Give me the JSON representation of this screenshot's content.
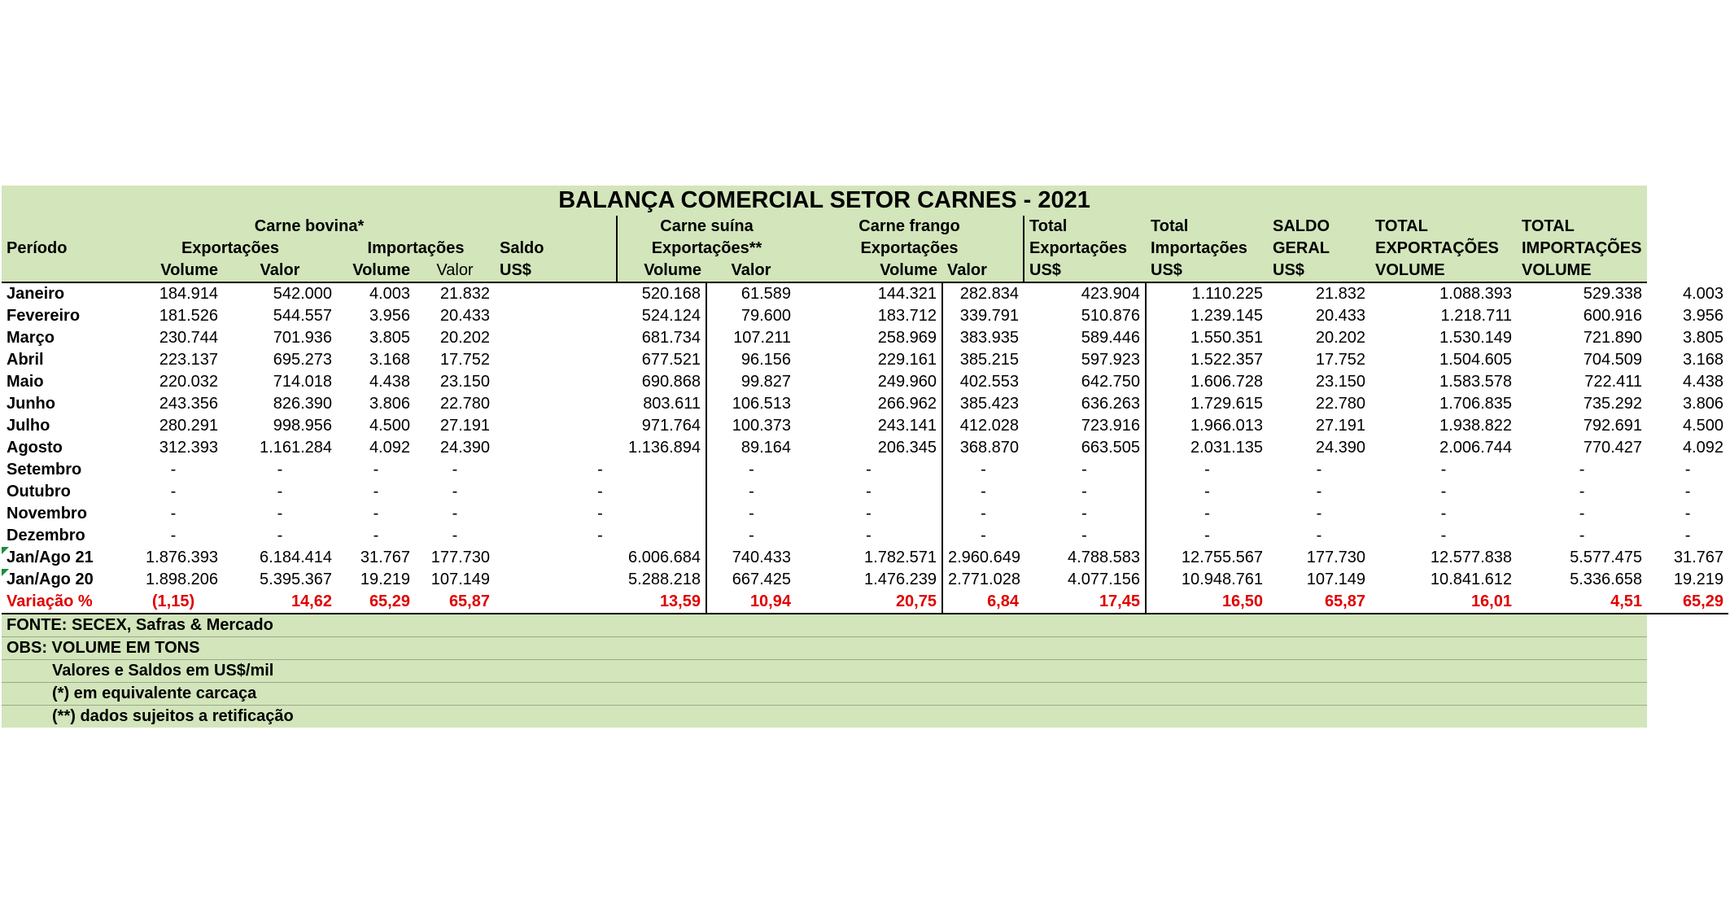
{
  "title": "BALANÇA COMERCIAL SETOR CARNES - 2021",
  "header": {
    "periodo": "Período",
    "carne_bovina": "Carne bovina*",
    "exportacoes": "Exportações",
    "importacoes": "Importações",
    "saldo": "Saldo",
    "us": "US$",
    "carne_suina": "Carne suína",
    "exportacoes_ss": "Exportações**",
    "carne_frango": "Carne frango",
    "volume": "Volume",
    "valor": "Valor",
    "total": "Total",
    "total_exportacoes": "Exportações",
    "total_importacoes": "Importações",
    "saldo_geral_1": "SALDO",
    "saldo_geral_2": "GERAL",
    "total_caps": "TOTAL",
    "exportacoes_caps": "EXPORTAÇÕES",
    "importacoes_caps": "IMPORTAÇÕES",
    "volume_caps": "VOLUME"
  },
  "rows": [
    {
      "label": "Janeiro",
      "v": [
        "184.914",
        "542.000",
        "4.003",
        "21.832",
        "520.168",
        "61.589",
        "144.321",
        "282.834",
        "423.904",
        "1.110.225",
        "21.832",
        "1.088.393",
        "529.338",
        "4.003"
      ]
    },
    {
      "label": "Fevereiro",
      "v": [
        "181.526",
        "544.557",
        "3.956",
        "20.433",
        "524.124",
        "79.600",
        "183.712",
        "339.791",
        "510.876",
        "1.239.145",
        "20.433",
        "1.218.711",
        "600.916",
        "3.956"
      ]
    },
    {
      "label": "Março",
      "v": [
        "230.744",
        "701.936",
        "3.805",
        "20.202",
        "681.734",
        "107.211",
        "258.969",
        "383.935",
        "589.446",
        "1.550.351",
        "20.202",
        "1.530.149",
        "721.890",
        "3.805"
      ]
    },
    {
      "label": "Abril",
      "v": [
        "223.137",
        "695.273",
        "3.168",
        "17.752",
        "677.521",
        "96.156",
        "229.161",
        "385.215",
        "597.923",
        "1.522.357",
        "17.752",
        "1.504.605",
        "704.509",
        "3.168"
      ]
    },
    {
      "label": "Maio",
      "v": [
        "220.032",
        "714.018",
        "4.438",
        "23.150",
        "690.868",
        "99.827",
        "249.960",
        "402.553",
        "642.750",
        "1.606.728",
        "23.150",
        "1.583.578",
        "722.411",
        "4.438"
      ]
    },
    {
      "label": "Junho",
      "v": [
        "243.356",
        "826.390",
        "3.806",
        "22.780",
        "803.611",
        "106.513",
        "266.962",
        "385.423",
        "636.263",
        "1.729.615",
        "22.780",
        "1.706.835",
        "735.292",
        "3.806"
      ]
    },
    {
      "label": "Julho",
      "v": [
        "280.291",
        "998.956",
        "4.500",
        "27.191",
        "971.764",
        "100.373",
        "243.141",
        "412.028",
        "723.916",
        "1.966.013",
        "27.191",
        "1.938.822",
        "792.691",
        "4.500"
      ]
    },
    {
      "label": "Agosto",
      "v": [
        "312.393",
        "1.161.284",
        "4.092",
        "24.390",
        "1.136.894",
        "89.164",
        "206.345",
        "368.870",
        "663.505",
        "2.031.135",
        "24.390",
        "2.006.744",
        "770.427",
        "4.092"
      ]
    },
    {
      "label": "Setembro",
      "v": [
        "-",
        "-",
        "-",
        "-",
        "-",
        "-",
        "-",
        "-",
        "-",
        "-",
        "-",
        "-",
        "-",
        "-"
      ]
    },
    {
      "label": "Outubro",
      "v": [
        "-",
        "-",
        "-",
        "-",
        "-",
        "-",
        "-",
        "-",
        "-",
        "-",
        "-",
        "-",
        "-",
        "-"
      ]
    },
    {
      "label": "Novembro",
      "v": [
        "-",
        "-",
        "-",
        "-",
        "-",
        "-",
        "-",
        "-",
        "-",
        "-",
        "-",
        "-",
        "-",
        "-"
      ]
    },
    {
      "label": "Dezembro",
      "v": [
        "-",
        "-",
        "-",
        "-",
        "-",
        "-",
        "-",
        "-",
        "-",
        "-",
        "-",
        "-",
        "-",
        "-"
      ]
    },
    {
      "label": "Jan/Ago 21",
      "v": [
        "1.876.393",
        "6.184.414",
        "31.767",
        "177.730",
        "6.006.684",
        "740.433",
        "1.782.571",
        "2.960.649",
        "4.788.583",
        "12.755.567",
        "177.730",
        "12.577.838",
        "5.577.475",
        "31.767"
      ]
    },
    {
      "label": "Jan/Ago 20",
      "v": [
        "1.898.206",
        "5.395.367",
        "19.219",
        "107.149",
        "5.288.218",
        "667.425",
        "1.476.239",
        "2.771.028",
        "4.077.156",
        "10.948.761",
        "107.149",
        "10.841.612",
        "5.336.658",
        "19.219"
      ]
    }
  ],
  "variacao": {
    "label": "Variação %",
    "v": [
      "(1,15)",
      "14,62",
      "65,29",
      "65,87",
      "13,59",
      "10,94",
      "20,75",
      "6,84",
      "17,45",
      "16,50",
      "65,87",
      "16,01",
      "4,51",
      "65,29"
    ]
  },
  "notes": [
    "FONTE: SECEX, Safras & Mercado",
    "OBS: VOLUME EM TONS",
    "Valores e Saldos em US$/mil",
    "(*) em equivalente carcaça",
    "(**) dados sujeitos a retificação"
  ]
}
